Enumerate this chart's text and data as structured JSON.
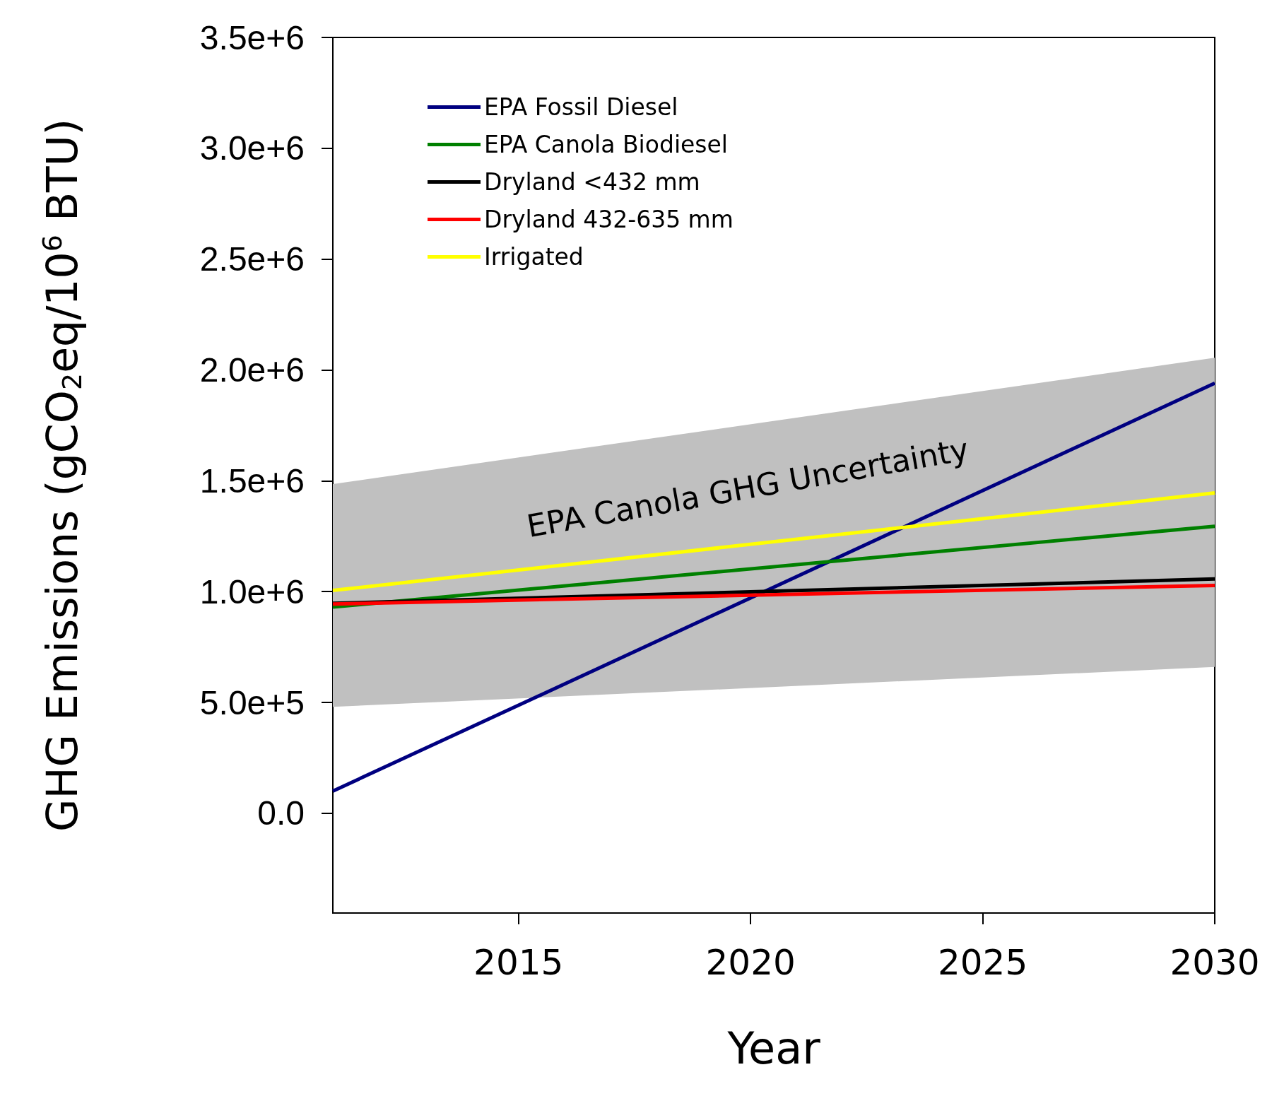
{
  "chart_data": {
    "type": "line",
    "xlabel": "Year",
    "ylabel": "GHG Emissions (gCO$_{2}$eq/10$^{6}$ BTU)",
    "x": [
      2011,
      2030
    ],
    "series": [
      {
        "name": "EPA Fossil Diesel",
        "color": "#000080",
        "values": [
          100000,
          1940000
        ]
      },
      {
        "name": "EPA Canola Biodiesel",
        "color": "#008000",
        "values": [
          930000,
          1295000
        ],
        "lower": [
          480000,
          660000
        ],
        "upper": [
          1485000,
          2055000
        ]
      },
      {
        "name": "Dryland <432 mm",
        "color": "#000000",
        "values": [
          947000,
          1057000
        ]
      },
      {
        "name": "Dryland 432-635 mm",
        "color": "#ff0000",
        "values": [
          944000,
          1028000
        ]
      },
      {
        "name": "Irrigated",
        "color": "#ffff00",
        "values": [
          1005000,
          1445000
        ]
      }
    ],
    "annotations": [
      "EPA Canola GHG Uncertainty"
    ],
    "xlim": [
      2011,
      2030
    ],
    "xticks": [
      2015,
      2020,
      2025,
      2030
    ],
    "ylim": [
      -450000,
      3500000
    ],
    "yticks": [
      {
        "value": 0,
        "label": "0.0"
      },
      {
        "value": 500000,
        "label": "5.0e+5"
      },
      {
        "value": 1000000,
        "label": "1.0e+6"
      },
      {
        "value": 1500000,
        "label": "1.5e+6"
      },
      {
        "value": 2000000,
        "label": "2.0e+6"
      },
      {
        "value": 2500000,
        "label": "2.5e+6"
      },
      {
        "value": 3000000,
        "label": "3.0e+6"
      },
      {
        "value": 3500000,
        "label": "3.5e+6"
      }
    ],
    "legend": "top left",
    "grid": false,
    "line_style": "solid",
    "marker": "none"
  }
}
